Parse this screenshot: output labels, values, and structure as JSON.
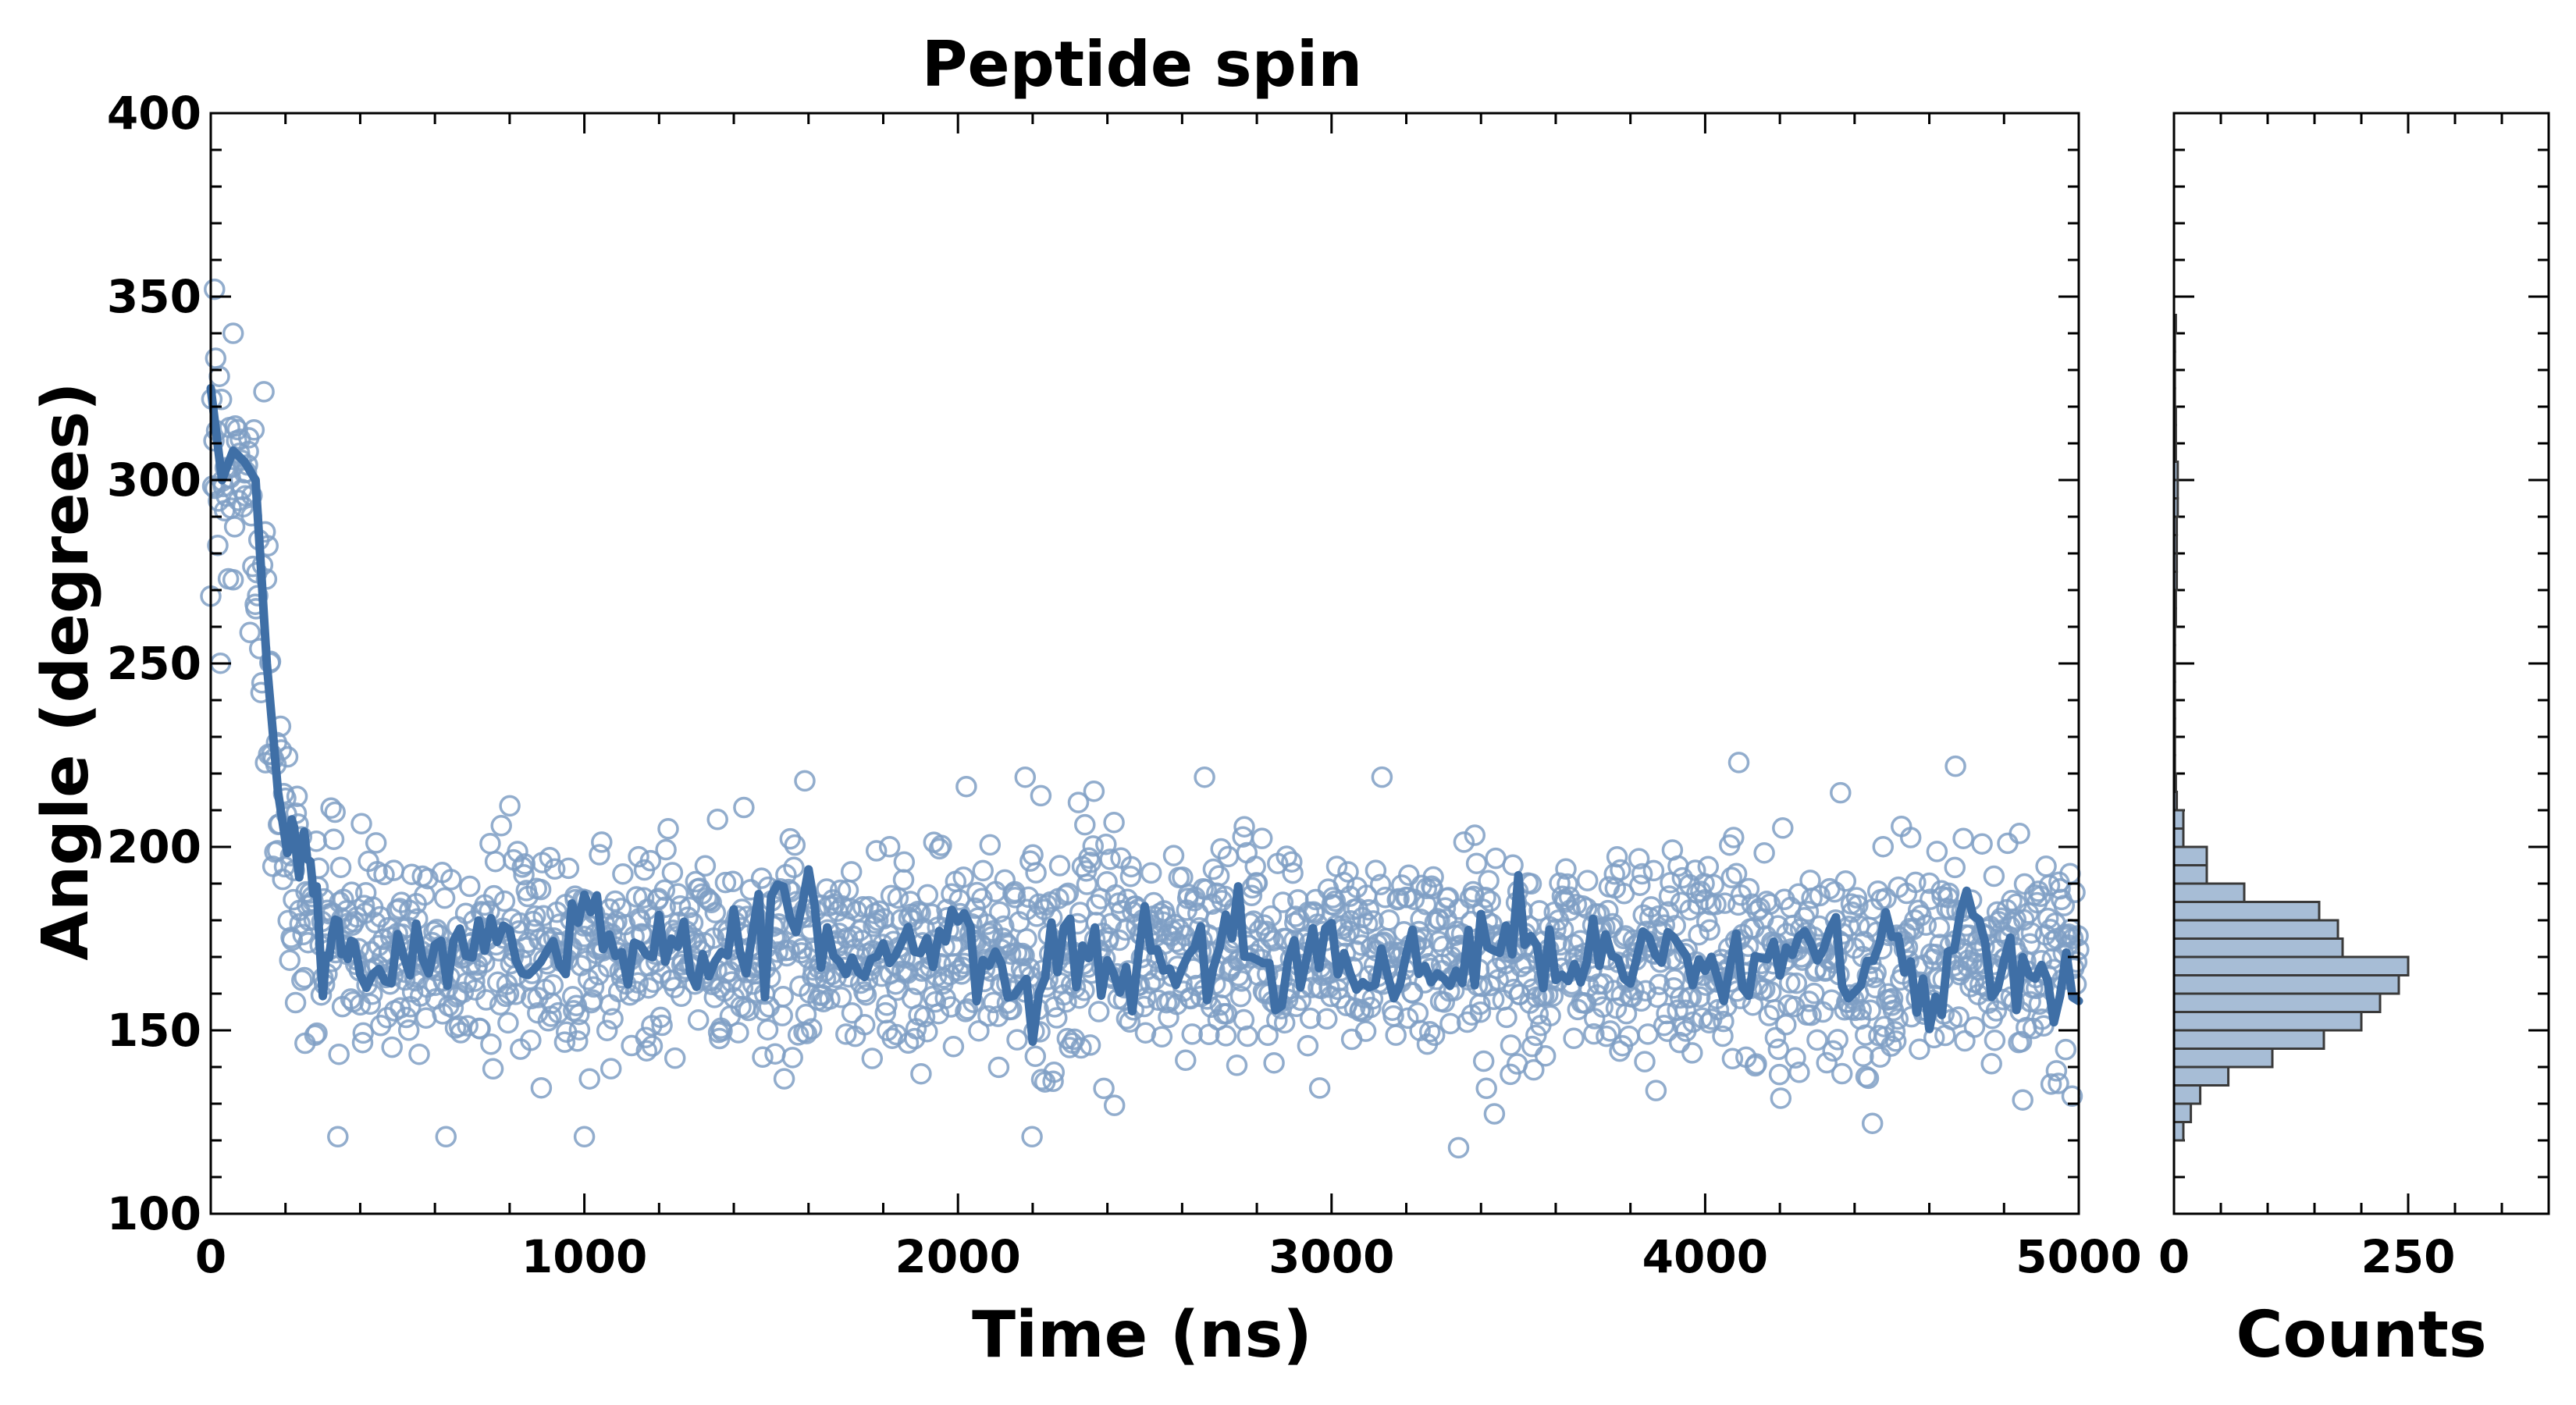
{
  "colors": {
    "series": "#3f6fa6",
    "marker_edge": "#7f9fc4",
    "hist_fill": "#a7bdd6",
    "hist_edge": "#3a3a3a",
    "axes": "#000000"
  },
  "chart_data": [
    {
      "type": "scatter",
      "title": "Peptide spin",
      "xlabel": "Time (ns)",
      "ylabel": "Angle (degrees)",
      "xlim": [
        0,
        5000
      ],
      "ylim": [
        100,
        400
      ],
      "xticks": [
        "0",
        "1000",
        "2000",
        "3000",
        "4000",
        "5000"
      ],
      "yticks": [
        "100",
        "150",
        "200",
        "250",
        "300",
        "350",
        "400"
      ],
      "series": [
        {
          "name": "raw angle samples",
          "style": "open-circle markers",
          "description": "about 1900 samples; starts near 310 degrees, drops to about 175 by 250 ns, then fluctuates between 120 and 225",
          "envelope_x": [
            0,
            20,
            60,
            100,
            130,
            160,
            190,
            220,
            260,
            300,
            400,
            500,
            1000,
            2000,
            3000,
            4000,
            5000
          ],
          "envelope_mean": [
            318,
            305,
            300,
            298,
            275,
            235,
            205,
            190,
            180,
            178,
            174,
            172,
            172,
            172,
            171,
            171,
            168
          ],
          "envelope_spread": [
            18,
            18,
            16,
            16,
            22,
            22,
            18,
            16,
            15,
            14,
            14,
            14,
            14,
            14,
            14,
            14,
            14
          ],
          "extreme_points": [
            {
              "x": 10,
              "y": 352
            },
            {
              "x": 60,
              "y": 340
            },
            {
              "x": 1000,
              "y": 121
            },
            {
              "x": 1590,
              "y": 218
            },
            {
              "x": 2180,
              "y": 219
            },
            {
              "x": 2660,
              "y": 219
            },
            {
              "x": 3340,
              "y": 118
            },
            {
              "x": 4090,
              "y": 223
            },
            {
              "x": 4670,
              "y": 222
            }
          ]
        },
        {
          "name": "running average",
          "style": "thick solid line",
          "x": [
            0,
            30,
            60,
            90,
            120,
            150,
            180,
            210,
            250,
            300,
            350,
            400,
            500,
            600,
            700,
            800,
            900,
            1000,
            1100,
            1200,
            1300,
            1400,
            1500,
            1600,
            1700,
            1800,
            1900,
            2000,
            2100,
            2200,
            2300,
            2400,
            2500,
            2600,
            2700,
            2800,
            2900,
            3000,
            3100,
            3200,
            3300,
            3400,
            3500,
            3600,
            3700,
            3800,
            3900,
            4000,
            4100,
            4200,
            4300,
            4400,
            4500,
            4600,
            4700,
            4800,
            4900,
            5000
          ],
          "y": [
            325,
            300,
            308,
            305,
            300,
            250,
            215,
            195,
            205,
            168,
            180,
            165,
            175,
            165,
            182,
            175,
            162,
            190,
            165,
            178,
            170,
            168,
            178,
            190,
            165,
            172,
            170,
            175,
            168,
            155,
            172,
            165,
            170,
            168,
            180,
            172,
            165,
            176,
            168,
            172,
            165,
            170,
            175,
            168,
            172,
            165,
            170,
            172,
            160,
            168,
            175,
            165,
            178,
            150,
            185,
            160,
            162,
            158
          ]
        }
      ]
    },
    {
      "type": "bar",
      "orientation": "horizontal",
      "description": "marginal histogram of angle",
      "xlabel": "Counts",
      "xlim": [
        0,
        400
      ],
      "xticks": [
        "0",
        "250"
      ],
      "ylim": [
        100,
        400
      ],
      "bin_edges": [
        120,
        125,
        130,
        135,
        140,
        145,
        150,
        155,
        160,
        165,
        170,
        175,
        180,
        185,
        190,
        195,
        200,
        205,
        210,
        215,
        220,
        225,
        230,
        235,
        240,
        245,
        250,
        255,
        260,
        265,
        270,
        275,
        280,
        285,
        290,
        295,
        300,
        305,
        310,
        315,
        320,
        325,
        330,
        335,
        340,
        345,
        350
      ],
      "counts": [
        10,
        18,
        28,
        58,
        105,
        160,
        200,
        220,
        240,
        250,
        180,
        175,
        155,
        75,
        35,
        35,
        10,
        10,
        3,
        2,
        1,
        1,
        1,
        1,
        1,
        1,
        1,
        1,
        2,
        2,
        3,
        3,
        3,
        3,
        4,
        4,
        4,
        2,
        2,
        2,
        1,
        1,
        1,
        1,
        2,
        0
      ]
    }
  ]
}
